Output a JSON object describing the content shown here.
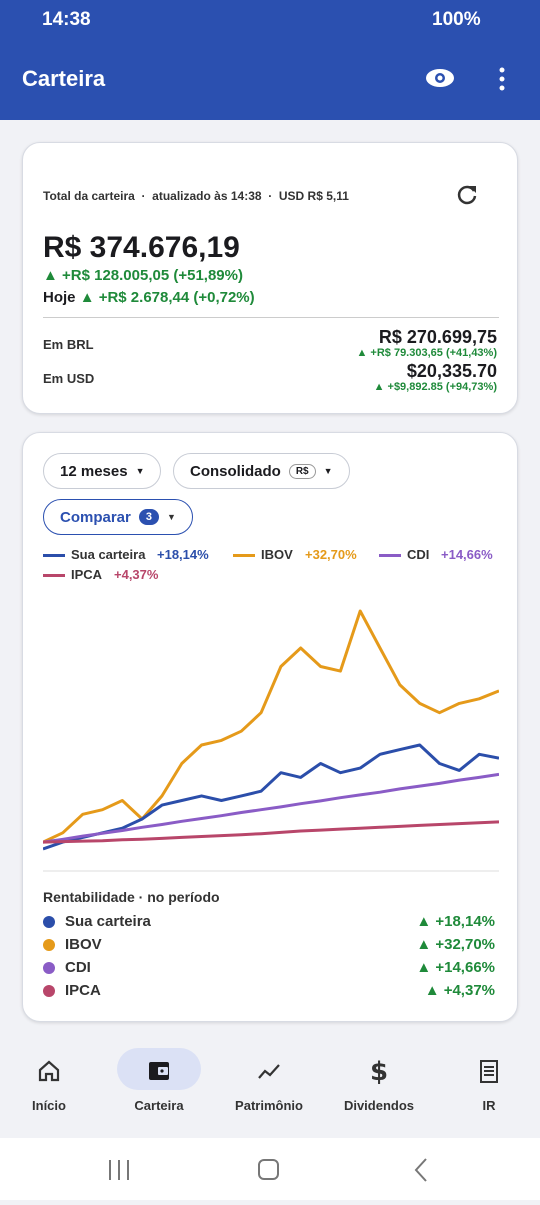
{
  "status": {
    "time": "14:38",
    "battery": "100%"
  },
  "appbar": {
    "title": "Carteira"
  },
  "summary": {
    "label": "Total da carteira",
    "updated": "atualizado às 14:38",
    "rate": "USD R$ 5,11",
    "total": "R$ 374.676,19",
    "gain": "+R$ 128.005,05 (+51,89%)",
    "today_label": "Hoje",
    "today": "+R$ 2.678,44 (+0,72%)",
    "rows": [
      {
        "label": "Em BRL",
        "value": "R$ 270.699,75",
        "gain": "+R$ 79.303,65 (+41,43%)"
      },
      {
        "label": "Em USD",
        "value": "$20,335.70",
        "gain": "+$9,892.85 (+94,73%)"
      }
    ]
  },
  "filters": {
    "period": "12 meses",
    "mode": "Consolidado",
    "currency": "R$",
    "compare": "Comparar",
    "compare_count": "3"
  },
  "chart_data": {
    "type": "line",
    "series": [
      {
        "name": "Sua carteira",
        "color": "#2b4eaa",
        "change": "+18,14%",
        "values": [
          -1.5,
          0,
          1,
          2,
          3,
          5,
          8,
          9,
          10,
          9,
          10,
          11,
          15,
          14,
          17,
          15,
          16,
          19,
          20,
          21,
          17,
          15.5,
          19,
          18.14
        ]
      },
      {
        "name": "IBOV",
        "color": "#e59a1a",
        "change": "+32,70%",
        "values": [
          0,
          2,
          6,
          7,
          9,
          5,
          10,
          17,
          21,
          22,
          24,
          28,
          38,
          42,
          38,
          37,
          50,
          42,
          34,
          30,
          28,
          30,
          31,
          32.7
        ]
      },
      {
        "name": "CDI",
        "color": "#8a5cc6",
        "change": "+14,66%",
        "values": [
          0,
          0.6,
          1.3,
          1.9,
          2.5,
          3.2,
          3.8,
          4.5,
          5.1,
          5.7,
          6.4,
          7.0,
          7.6,
          8.3,
          8.9,
          9.6,
          10.2,
          10.8,
          11.5,
          12.1,
          12.7,
          13.4,
          14.0,
          14.66
        ]
      },
      {
        "name": "IPCA",
        "color": "#b8466a",
        "change": "+4,37%",
        "values": [
          0,
          0.1,
          0.2,
          0.3,
          0.5,
          0.6,
          0.8,
          1.0,
          1.2,
          1.4,
          1.6,
          1.8,
          2.1,
          2.4,
          2.6,
          2.8,
          3.0,
          3.2,
          3.4,
          3.6,
          3.8,
          4.0,
          4.2,
          4.37
        ]
      }
    ]
  },
  "performance": {
    "title": "Rentabilidade · no período"
  },
  "nav": [
    "Início",
    "Carteira",
    "Patrimônio",
    "Dividendos",
    "IR"
  ]
}
